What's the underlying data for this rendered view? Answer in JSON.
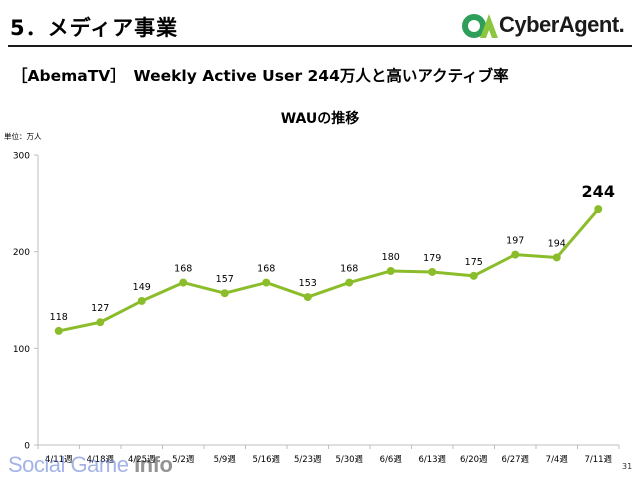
{
  "header": {
    "section_title": "5．メディア事業",
    "logo_text": "CyberAgent.",
    "headline": "［AbemaTV］　Weekly Active User 244万人と高いアクティブ率"
  },
  "chart_unit": "単位：万人",
  "watermark": {
    "prefix": "Social Game ",
    "suffix": "Info"
  },
  "page_number": "31",
  "colors": {
    "line": "#8bbd2a",
    "accent_green": "#7cb342",
    "axis": "#bfbfbf"
  },
  "chart_data": {
    "type": "line",
    "title": "WAUの推移",
    "xlabel": "",
    "ylabel": "",
    "categories": [
      "4/11週",
      "4/18週",
      "4/25週",
      "5/2週",
      "5/9週",
      "5/16週",
      "5/23週",
      "5/30週",
      "6/6週",
      "6/13週",
      "6/20週",
      "6/27週",
      "7/4週",
      "7/11週"
    ],
    "values": [
      118,
      127,
      149,
      168,
      157,
      168,
      153,
      168,
      180,
      179,
      175,
      197,
      194,
      244
    ],
    "data_labels": [
      "118",
      "127",
      "149",
      "168",
      "157",
      "168",
      "153",
      "168",
      "180",
      "179",
      "175",
      "197",
      "194",
      "244"
    ],
    "ylim": [
      0,
      300
    ],
    "yticks": [
      "0",
      "100",
      "200",
      "300"
    ],
    "grid": false,
    "legend": "none",
    "highlight_last_label": true
  }
}
